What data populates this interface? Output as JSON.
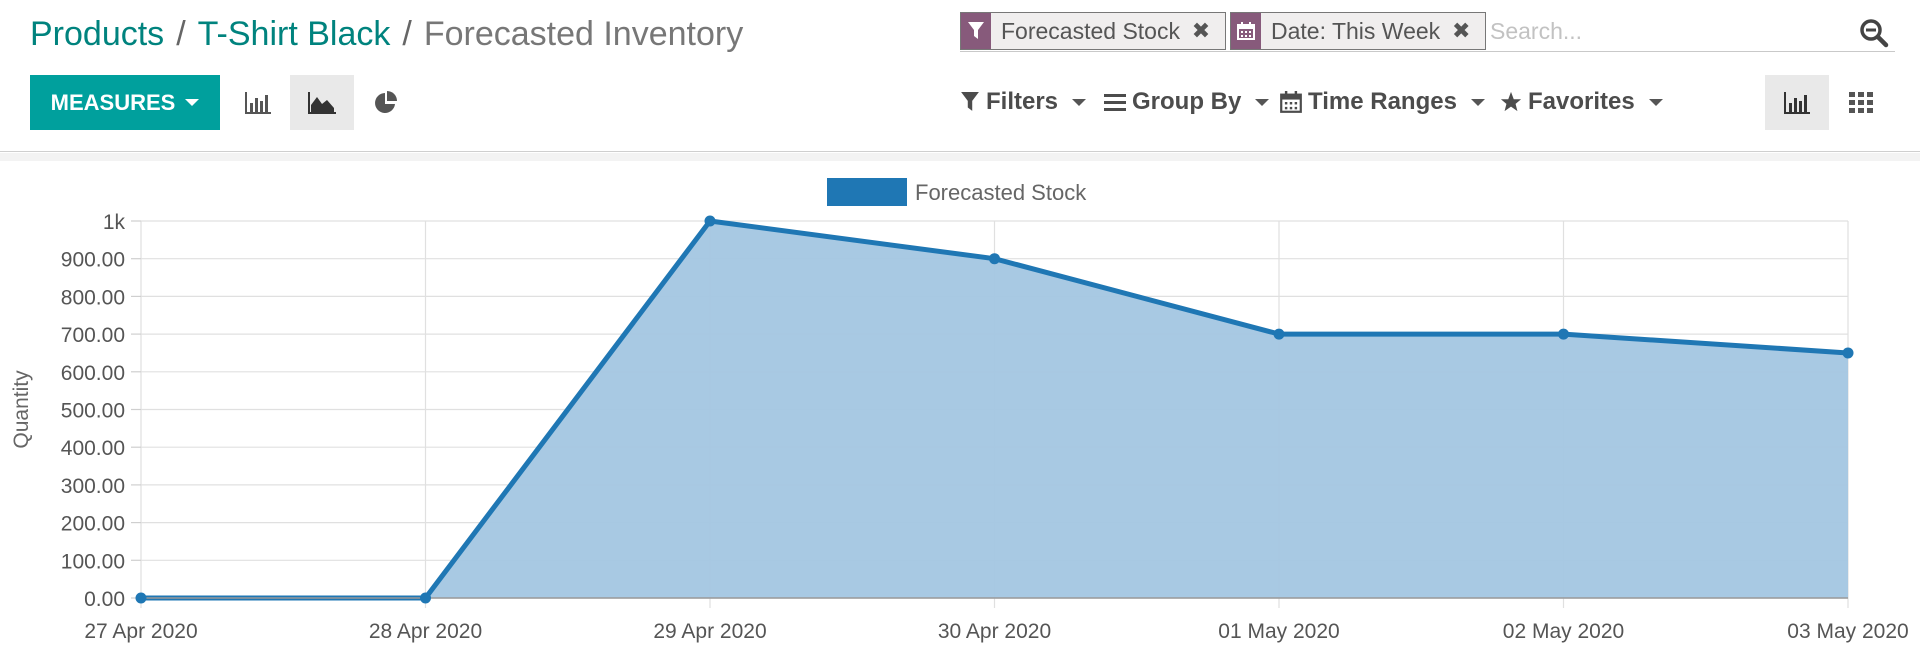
{
  "breadcrumb": {
    "items": [
      "Products",
      "T-Shirt Black"
    ],
    "separator": "/",
    "current": "Forecasted Inventory"
  },
  "search": {
    "facets": [
      {
        "icon": "filter-icon",
        "label": "Forecasted Stock"
      },
      {
        "icon": "calendar-icon",
        "label": "Date: This Week"
      }
    ],
    "placeholder": "Search...",
    "remove_glyph": "✖"
  },
  "toolbar": {
    "measures_label": "MEASURES",
    "chart_modes": [
      "bar-chart-icon",
      "area-chart-icon",
      "pie-chart-icon"
    ],
    "active_mode": "area-chart-icon",
    "filters_label": "Filters",
    "groupby_label": "Group By",
    "timeranges_label": "Time Ranges",
    "favorites_label": "Favorites",
    "views": [
      "graph-view-icon",
      "pivot-view-icon"
    ],
    "active_view": "graph-view-icon"
  },
  "colors": {
    "accent": "#00a09d",
    "link": "#00837e",
    "facet": "#875a7b",
    "series": "#1f77b4",
    "series_fill": "#a3c6e2"
  },
  "chart_data": {
    "type": "area",
    "title": "",
    "legend": [
      "Forecasted Stock"
    ],
    "legend_position": "top-center",
    "xlabel": "",
    "ylabel": "Quantity",
    "categories": [
      "27 Apr 2020",
      "28 Apr 2020",
      "29 Apr 2020",
      "30 Apr 2020",
      "01 May 2020",
      "02 May 2020",
      "03 May 2020"
    ],
    "series": [
      {
        "name": "Forecasted Stock",
        "values": [
          0,
          0,
          1000,
          900,
          700,
          700,
          650
        ]
      }
    ],
    "ylim": [
      0,
      1000
    ],
    "y_ticks": [
      "0.00",
      "100.00",
      "200.00",
      "300.00",
      "400.00",
      "500.00",
      "600.00",
      "700.00",
      "800.00",
      "900.00",
      "1k"
    ],
    "grid": true
  }
}
